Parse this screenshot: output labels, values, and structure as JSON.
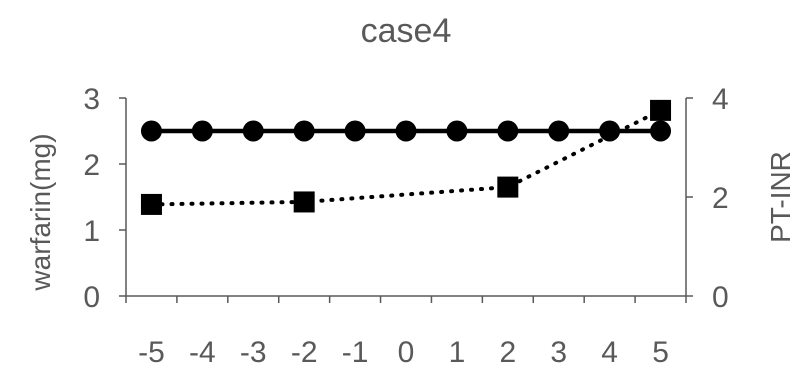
{
  "chart_data": {
    "type": "line",
    "title": "case4",
    "x": [
      -5,
      -4,
      -3,
      -2,
      -1,
      0,
      1,
      2,
      3,
      4,
      5
    ],
    "x_ticks": [
      "-5",
      "-4",
      "-3",
      "-2",
      "-1",
      "0",
      "1",
      "2",
      "3",
      "4",
      "5"
    ],
    "xlim": [
      -5.5,
      5.5
    ],
    "y_left": {
      "label": "warfarin(mg)",
      "range": [
        0,
        3
      ],
      "ticks": [
        "0",
        "1",
        "2",
        "3"
      ]
    },
    "y_right": {
      "label": "PT-INR",
      "range": [
        0,
        4
      ],
      "ticks": [
        "0",
        "2",
        "4"
      ]
    },
    "grid": false,
    "series": [
      {
        "axis": "left",
        "style": "solid",
        "marker": "circle",
        "color": "#000000",
        "points": [
          {
            "x": -5,
            "y": 2.5
          },
          {
            "x": -4,
            "y": 2.5
          },
          {
            "x": -3,
            "y": 2.5
          },
          {
            "x": -2,
            "y": 2.5
          },
          {
            "x": -1,
            "y": 2.5
          },
          {
            "x": 0,
            "y": 2.5
          },
          {
            "x": 1,
            "y": 2.5
          },
          {
            "x": 2,
            "y": 2.5
          },
          {
            "x": 3,
            "y": 2.5
          },
          {
            "x": 4,
            "y": 2.5
          },
          {
            "x": 5,
            "y": 2.5
          }
        ]
      },
      {
        "axis": "right",
        "style": "dotted",
        "marker": "square",
        "color": "#000000",
        "points": [
          {
            "x": -5,
            "y": 1.85
          },
          {
            "x": -2,
            "y": 1.9
          },
          {
            "x": 2,
            "y": 2.2
          },
          {
            "x": 5,
            "y": 3.75
          }
        ]
      }
    ]
  }
}
